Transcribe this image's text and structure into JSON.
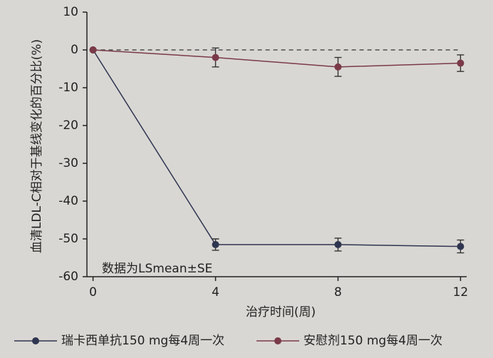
{
  "chart_data": {
    "type": "line",
    "y_label": "血清LDL-C相对于基线变化的百分比(%)",
    "x_label": "治疗时间(周)",
    "annotation": "数据为LSmean±SE",
    "x": [
      0,
      4,
      8,
      12
    ],
    "series": [
      {
        "name": "瑞卡西单抗150 mg每4周一次",
        "color": "#2e3550",
        "values": [
          0,
          -51.5,
          -51.5,
          -52
        ],
        "errors": [
          0,
          1.5,
          1.7,
          1.7
        ]
      },
      {
        "name": "安慰剂150 mg每4周一次",
        "color": "#7a3a48",
        "values": [
          0,
          -2,
          -4.5,
          -3.5
        ],
        "errors": [
          0,
          2.5,
          2.5,
          2.2
        ]
      }
    ],
    "reference_y": 0,
    "xlim": [
      -0.2,
      12.2
    ],
    "xticks": [
      0,
      4,
      8,
      12
    ],
    "ylim": [
      -60,
      10
    ],
    "yticks": [
      10,
      0,
      -10,
      -20,
      -30,
      -40,
      -50,
      -60
    ]
  }
}
